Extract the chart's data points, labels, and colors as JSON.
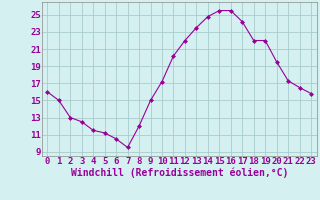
{
  "x": [
    0,
    1,
    2,
    3,
    4,
    5,
    6,
    7,
    8,
    9,
    10,
    11,
    12,
    13,
    14,
    15,
    16,
    17,
    18,
    19,
    20,
    21,
    22,
    23
  ],
  "y": [
    16,
    15,
    13,
    12.5,
    11.5,
    11.2,
    10.5,
    9.5,
    12,
    15,
    17.2,
    20.2,
    22,
    23.5,
    24.8,
    25.5,
    25.5,
    24.2,
    22,
    22,
    19.5,
    17.3,
    16.5,
    15.8
  ],
  "line_color": "#990099",
  "marker": "D",
  "marker_size": 2,
  "bg_color": "#d4f0f0",
  "grid_color": "#aacccc",
  "xlabel": "Windchill (Refroidissement éolien,°C)",
  "yticks": [
    9,
    11,
    13,
    15,
    17,
    19,
    21,
    23,
    25
  ],
  "xticks": [
    0,
    1,
    2,
    3,
    4,
    5,
    6,
    7,
    8,
    9,
    10,
    11,
    12,
    13,
    14,
    15,
    16,
    17,
    18,
    19,
    20,
    21,
    22,
    23
  ],
  "ylim": [
    8.5,
    26.5
  ],
  "xlim": [
    -0.5,
    23.5
  ],
  "tick_fontsize": 6.5,
  "xlabel_fontsize": 7,
  "spine_color": "#888888"
}
